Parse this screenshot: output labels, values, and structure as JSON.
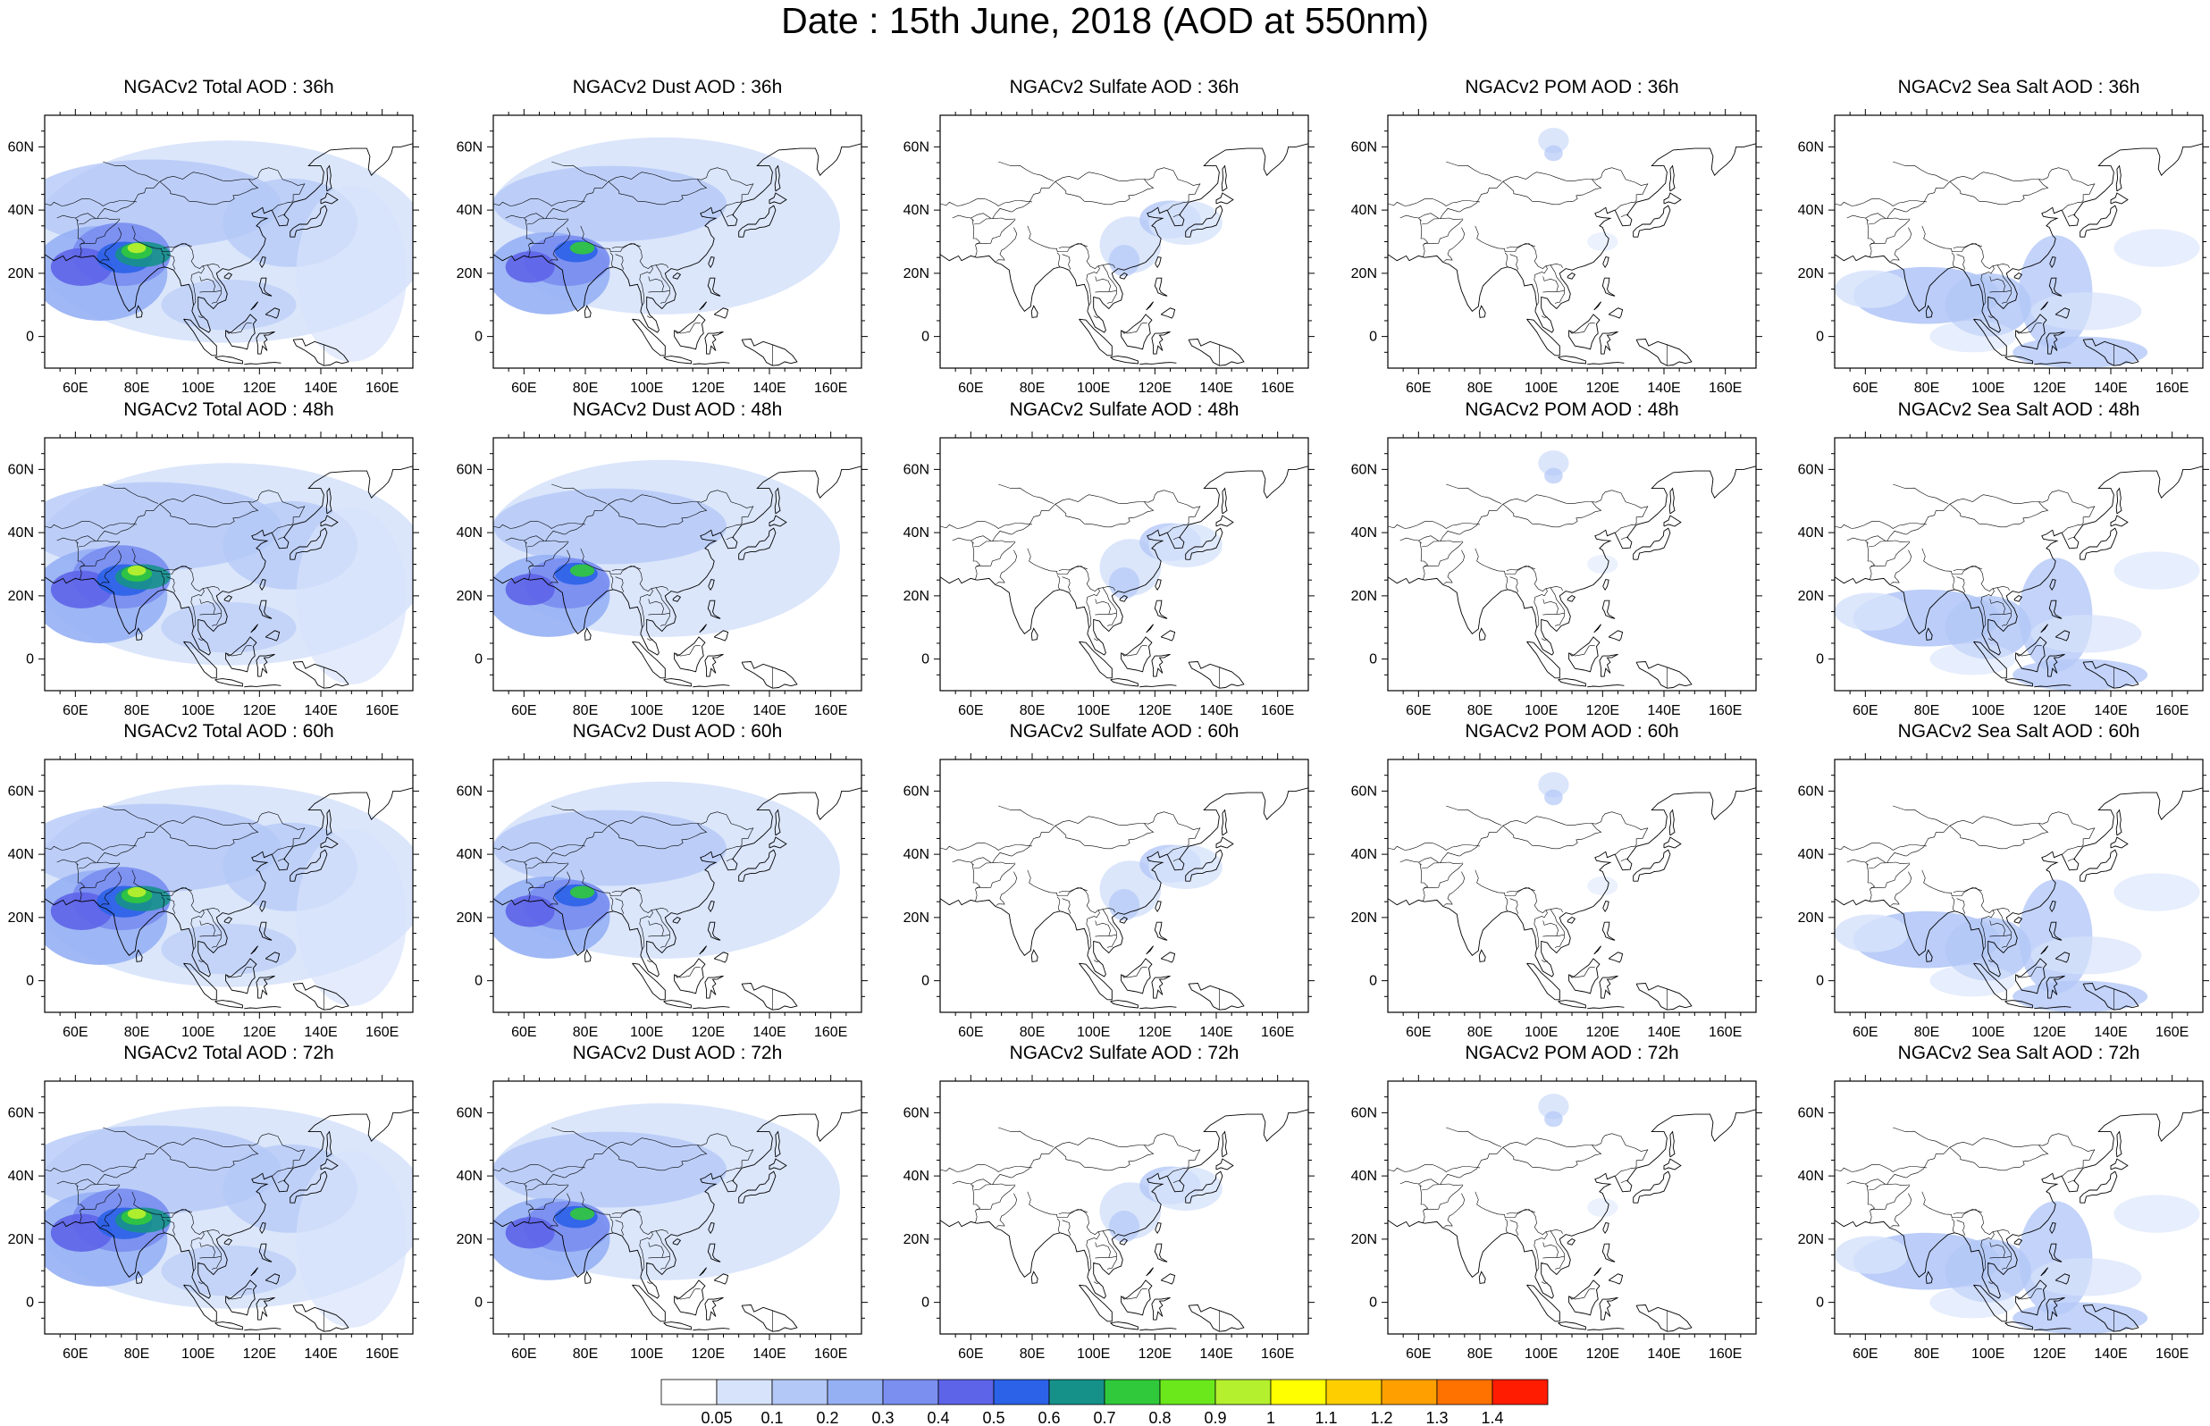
{
  "title": "Date : 15th June, 2018 (AOD at 550nm)",
  "map": {
    "lat_ticks": [
      "60N",
      "40N",
      "20N",
      "0"
    ],
    "lon_ticks": [
      "60E",
      "80E",
      "100E",
      "120E",
      "140E",
      "160E"
    ],
    "lon_range": [
      50,
      170
    ],
    "lat_range": [
      -10,
      70
    ]
  },
  "panels": [
    {
      "title": "NGACv2 Total AOD : 36h",
      "species": "total"
    },
    {
      "title": "NGACv2 Dust AOD : 36h",
      "species": "dust"
    },
    {
      "title": "NGACv2 Sulfate AOD : 36h",
      "species": "sulfate"
    },
    {
      "title": "NGACv2 POM AOD : 36h",
      "species": "pom"
    },
    {
      "title": "NGACv2 Sea Salt AOD : 36h",
      "species": "seasalt"
    },
    {
      "title": "NGACv2 Total AOD : 48h",
      "species": "total"
    },
    {
      "title": "NGACv2 Dust AOD : 48h",
      "species": "dust"
    },
    {
      "title": "NGACv2 Sulfate AOD : 48h",
      "species": "sulfate"
    },
    {
      "title": "NGACv2 POM AOD : 48h",
      "species": "pom"
    },
    {
      "title": "NGACv2 Sea Salt AOD : 48h",
      "species": "seasalt"
    },
    {
      "title": "NGACv2 Total AOD : 60h",
      "species": "total"
    },
    {
      "title": "NGACv2 Dust AOD : 60h",
      "species": "dust"
    },
    {
      "title": "NGACv2 Sulfate AOD : 60h",
      "species": "sulfate"
    },
    {
      "title": "NGACv2 POM AOD : 60h",
      "species": "pom"
    },
    {
      "title": "NGACv2 Sea Salt AOD : 60h",
      "species": "seasalt"
    },
    {
      "title": "NGACv2 Total AOD : 72h",
      "species": "total"
    },
    {
      "title": "NGACv2 Dust AOD : 72h",
      "species": "dust"
    },
    {
      "title": "NGACv2 Sulfate AOD : 72h",
      "species": "sulfate"
    },
    {
      "title": "NGACv2 POM AOD : 72h",
      "species": "pom"
    },
    {
      "title": "NGACv2 Sea Salt  AOD : 72h",
      "species": "seasalt"
    }
  ],
  "colorbar": {
    "labels": [
      "0.05",
      "0.1",
      "0.2",
      "0.3",
      "0.4",
      "0.5",
      "0.6",
      "0.7",
      "0.8",
      "0.9",
      "1",
      "1.1",
      "1.2",
      "1.3",
      "1.4"
    ],
    "colors": [
      "#ffffff",
      "#d7e3fb",
      "#b4c8f7",
      "#96b0f4",
      "#7b8ff0",
      "#5e64e8",
      "#2b62e8",
      "#16918a",
      "#31c93c",
      "#6ae81c",
      "#b5f02e",
      "#ffff00",
      "#ffce00",
      "#ffa000",
      "#ff7200",
      "#ff1c00"
    ]
  }
}
